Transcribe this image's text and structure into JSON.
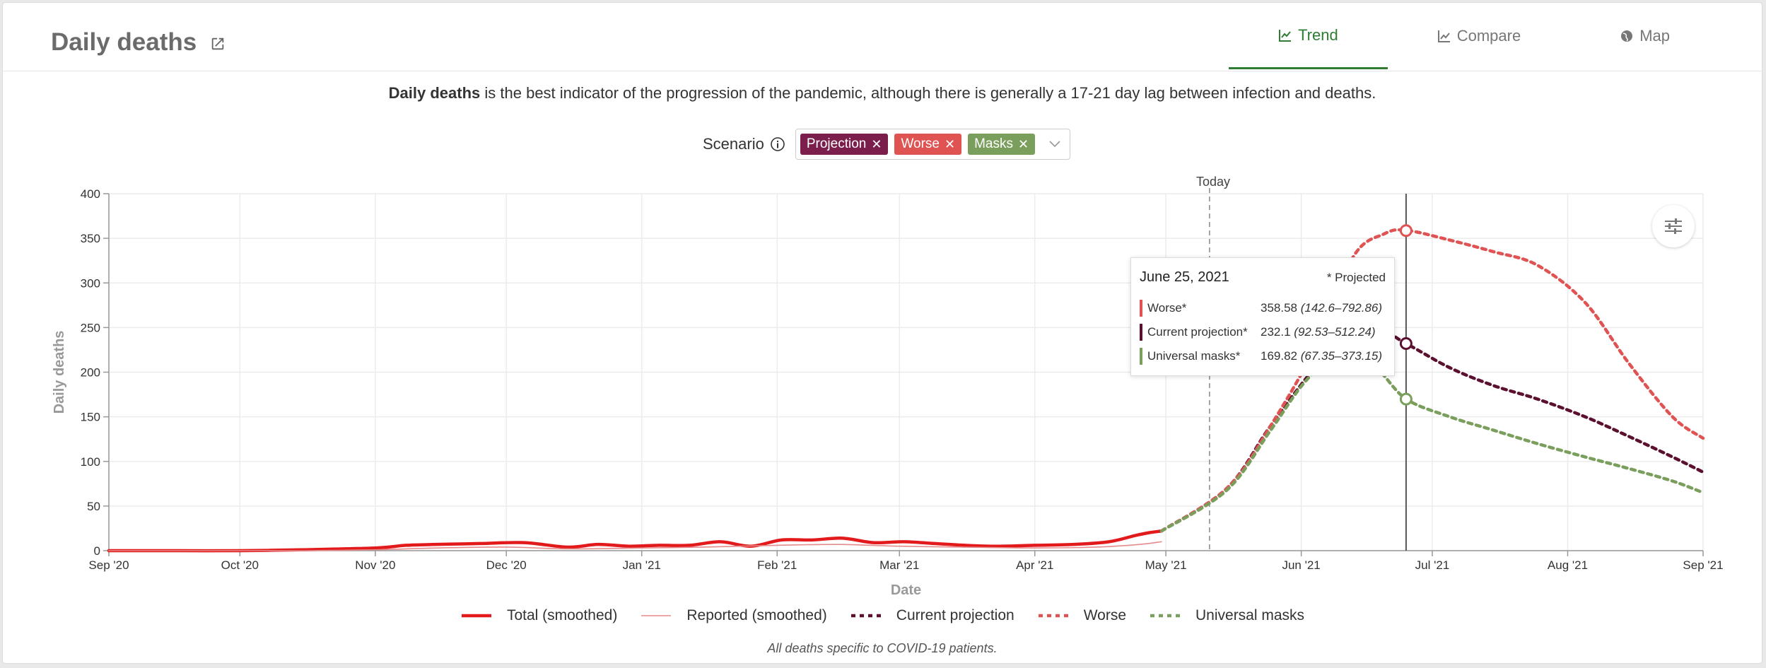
{
  "header": {
    "title": "Daily deaths",
    "tabs": [
      {
        "label": "Trend",
        "active": true,
        "icon": "line-chart-icon"
      },
      {
        "label": "Compare",
        "active": false,
        "icon": "area-chart-icon"
      },
      {
        "label": "Map",
        "active": false,
        "icon": "globe-icon"
      }
    ]
  },
  "description": {
    "bold": "Daily deaths",
    "rest": " is the best indicator of the progression of the pandemic, although there is generally a 17-21 day lag between infection and deaths."
  },
  "scenario": {
    "label": "Scenario",
    "chips": [
      {
        "label": "Projection",
        "color": "#7b1e4c"
      },
      {
        "label": "Worse",
        "color": "#e05353"
      },
      {
        "label": "Masks",
        "color": "#7a9e5c"
      }
    ]
  },
  "today_label": "Today",
  "tooltip": {
    "date": "June 25, 2021",
    "note": "* Projected",
    "rows": [
      {
        "name": "Worse*",
        "value": "358.58",
        "range": "(142.6–792.86)",
        "color": "#e05353"
      },
      {
        "name": "Current projection*",
        "value": "232.1",
        "range": "(92.53–512.24)",
        "color": "#5c1030"
      },
      {
        "name": "Universal masks*",
        "value": "169.82",
        "range": "(67.35–373.15)",
        "color": "#7a9e5c"
      }
    ]
  },
  "footnote": "All deaths specific to COVID-19 patients.",
  "chart_data": {
    "type": "line",
    "xlabel": "Date",
    "ylabel": "Daily deaths",
    "ylim": [
      0,
      400
    ],
    "yticks": [
      0,
      50,
      100,
      150,
      200,
      250,
      300,
      350,
      400
    ],
    "xticks": [
      "Sep '20",
      "Oct '20",
      "Nov '20",
      "Dec '20",
      "Jan '21",
      "Feb '21",
      "Mar '21",
      "Apr '21",
      "May '21",
      "Jun '21",
      "Jul '21",
      "Aug '21",
      "Sep '21"
    ],
    "xlim": [
      "2020-09-01",
      "2021-09-01"
    ],
    "today": "2021-05-11",
    "hover": "2021-06-25",
    "grid": true,
    "legend_position": "bottom",
    "series": [
      {
        "name": "Total (smoothed)",
        "color": "#e31a1c",
        "style": "solid-thick",
        "x": [
          "2020-09-01",
          "2020-09-15",
          "2020-10-01",
          "2020-10-15",
          "2020-11-01",
          "2020-11-08",
          "2020-11-15",
          "2020-11-25",
          "2020-12-05",
          "2020-12-15",
          "2020-12-22",
          "2020-12-29",
          "2021-01-05",
          "2021-01-12",
          "2021-01-19",
          "2021-01-26",
          "2021-02-02",
          "2021-02-09",
          "2021-02-16",
          "2021-02-23",
          "2021-03-02",
          "2021-03-09",
          "2021-03-16",
          "2021-03-23",
          "2021-04-01",
          "2021-04-10",
          "2021-04-18",
          "2021-04-24",
          "2021-04-27",
          "2021-04-30"
        ],
        "y": [
          0,
          0,
          0,
          1,
          3,
          6,
          7,
          8,
          9,
          4,
          7,
          5,
          6,
          6,
          10,
          5,
          12,
          12,
          14,
          9,
          10,
          8,
          6,
          5,
          6,
          7,
          10,
          17,
          20,
          22
        ]
      },
      {
        "name": "Reported (smoothed)",
        "color": "#e58a8a",
        "style": "solid-thin",
        "x": [
          "2020-09-01",
          "2020-10-01",
          "2020-10-15",
          "2020-11-01",
          "2020-11-15",
          "2020-12-01",
          "2020-12-15",
          "2021-01-01",
          "2021-01-15",
          "2021-02-01",
          "2021-02-15",
          "2021-03-01",
          "2021-03-15",
          "2021-04-01",
          "2021-04-15",
          "2021-04-25",
          "2021-04-30"
        ],
        "y": [
          0,
          0,
          0,
          1,
          3,
          4,
          2,
          3,
          4,
          6,
          7,
          5,
          4,
          3,
          4,
          7,
          10
        ]
      },
      {
        "name": "Current projection",
        "color": "#5c1030",
        "style": "dotted",
        "x": [
          "2021-04-30",
          "2021-05-15",
          "2021-05-25",
          "2021-06-05",
          "2021-06-15",
          "2021-06-25",
          "2021-07-05",
          "2021-07-15",
          "2021-07-25",
          "2021-08-05",
          "2021-08-15",
          "2021-08-25",
          "2021-09-01"
        ],
        "y": [
          22,
          70,
          140,
          210,
          255,
          232,
          205,
          185,
          170,
          150,
          128,
          105,
          88
        ]
      },
      {
        "name": "Worse",
        "color": "#e05353",
        "style": "dotted",
        "x": [
          "2021-04-30",
          "2021-05-15",
          "2021-05-25",
          "2021-06-05",
          "2021-06-13",
          "2021-06-20",
          "2021-06-25",
          "2021-07-05",
          "2021-07-15",
          "2021-07-25",
          "2021-08-05",
          "2021-08-15",
          "2021-08-25",
          "2021-09-01"
        ],
        "y": [
          22,
          70,
          140,
          235,
          330,
          355,
          359,
          348,
          335,
          320,
          278,
          210,
          150,
          126
        ]
      },
      {
        "name": "Universal masks",
        "color": "#7a9e5c",
        "style": "dotted",
        "x": [
          "2021-04-30",
          "2021-05-15",
          "2021-05-25",
          "2021-06-02",
          "2021-06-10",
          "2021-06-18",
          "2021-06-25",
          "2021-07-05",
          "2021-07-15",
          "2021-07-25",
          "2021-08-05",
          "2021-08-15",
          "2021-08-25",
          "2021-09-01"
        ],
        "y": [
          22,
          68,
          135,
          190,
          222,
          205,
          170,
          150,
          135,
          120,
          105,
          92,
          78,
          65
        ]
      }
    ]
  }
}
